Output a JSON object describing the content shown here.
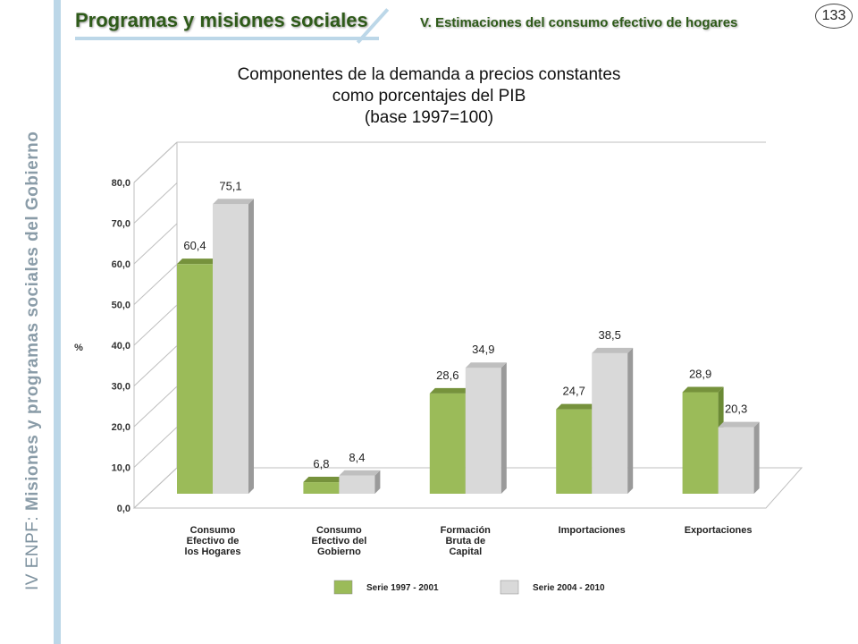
{
  "sidebar": {
    "part1": "IV ENPF:",
    "part2": "Misiones y programas sociales del Gobierno"
  },
  "header": {
    "title": "Programas y misiones sociales",
    "subtitle": "V. Estimaciones del consumo efectivo de hogares",
    "page_number": "133"
  },
  "chart_data": {
    "type": "bar",
    "title_lines": [
      "Componentes de la demanda a precios constantes",
      "como porcentajes del PIB",
      "(base 1997=100)"
    ],
    "ylabel": "%",
    "ylim": [
      0,
      80
    ],
    "ytick_labels": [
      "0,0",
      "10,0",
      "20,0",
      "30,0",
      "40,0",
      "50,0",
      "60,0",
      "70,0",
      "80,0"
    ],
    "categories": [
      [
        "Consumo",
        "Efectivo de",
        "los Hogares"
      ],
      [
        "Consumo",
        "Efectivo del",
        "Gobierno"
      ],
      [
        "Formación",
        "Bruta de",
        "Capital"
      ],
      [
        "Importaciones"
      ],
      [
        "Exportaciones"
      ]
    ],
    "series": [
      {
        "name": "Serie 1997 - 2001",
        "values": [
          60.4,
          6.8,
          28.6,
          24.7,
          28.9
        ],
        "labels": [
          "60,4",
          "6,8",
          "28,6",
          "24,7",
          "28,9"
        ],
        "color": "#9bbb59"
      },
      {
        "name": "Serie 2004 - 2010",
        "values": [
          75.1,
          8.4,
          34.9,
          38.5,
          20.3
        ],
        "labels": [
          "75,1",
          "8,4",
          "34,9",
          "38,5",
          "20,3"
        ],
        "color": "#d9d9d9"
      }
    ],
    "legend_position": "bottom",
    "grid": false
  }
}
